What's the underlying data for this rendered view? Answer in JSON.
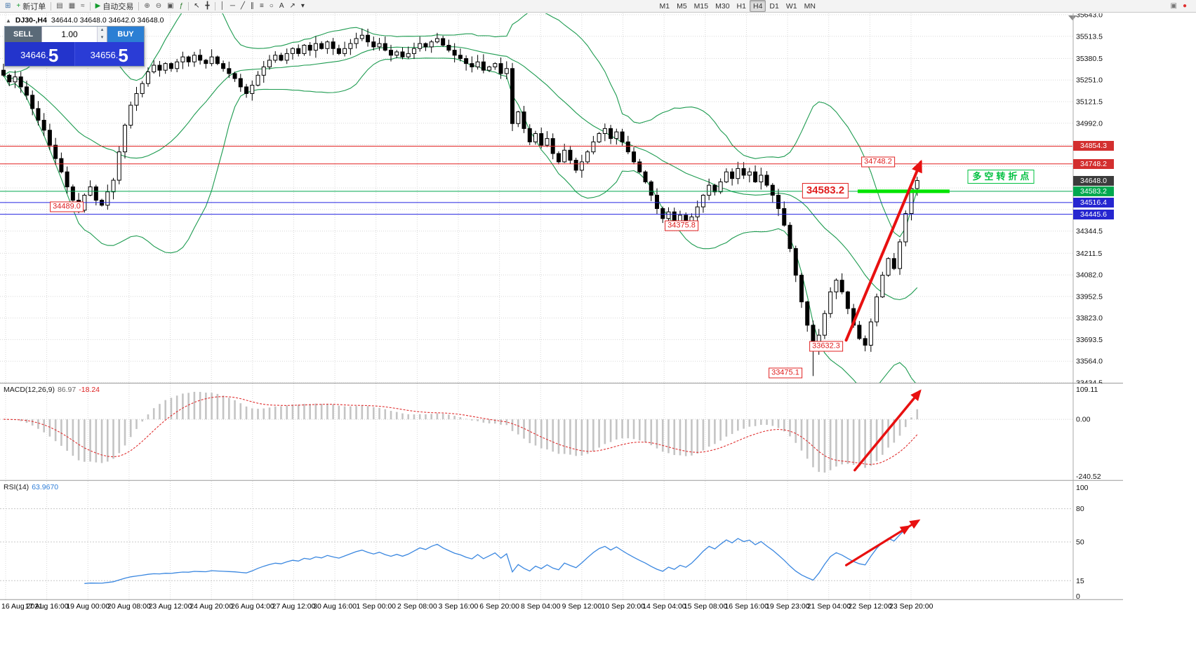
{
  "toolbar": {
    "buttons_left": [
      {
        "name": "new-chart-button",
        "glyph": "⊞",
        "color": "#3a6ea5"
      },
      {
        "name": "new-order-button",
        "glyph": "+",
        "label": "新订单",
        "color": "#149c2e"
      },
      {
        "name": "sep"
      },
      {
        "name": "chart-bars-button",
        "glyph": "▤",
        "color": "#555555"
      },
      {
        "name": "chart-candles-button",
        "glyph": "▦",
        "color": "#555555"
      },
      {
        "name": "chart-line-button",
        "glyph": "≈",
        "color": "#555555"
      },
      {
        "name": "sep"
      },
      {
        "name": "auto-trading-button",
        "glyph": "▶",
        "label": "自动交易",
        "color": "#149c2e"
      },
      {
        "name": "sep"
      },
      {
        "name": "zoom-in-button",
        "glyph": "⊕",
        "color": "#555555"
      },
      {
        "name": "zoom-out-button",
        "glyph": "⊖",
        "color": "#555555"
      },
      {
        "name": "tile-windows-button",
        "glyph": "▣",
        "color": "#555555"
      },
      {
        "name": "indicators-button",
        "glyph": "ƒ",
        "color": "#2a7a2a"
      },
      {
        "name": "sep"
      },
      {
        "name": "cursor-button",
        "glyph": "↖",
        "color": "#333333"
      },
      {
        "name": "crosshair-button",
        "glyph": "╋",
        "color": "#333333"
      },
      {
        "name": "sep"
      },
      {
        "name": "vertical-line-button",
        "glyph": "│",
        "color": "#333333"
      },
      {
        "name": "horizontal-line-button",
        "glyph": "─",
        "color": "#333333"
      },
      {
        "name": "trendline-button",
        "glyph": "╱",
        "color": "#333333"
      },
      {
        "name": "channel-button",
        "glyph": "∥",
        "color": "#333333"
      },
      {
        "name": "fibonacci-button",
        "glyph": "≡",
        "color": "#333333"
      },
      {
        "name": "ellipse-button",
        "glyph": "○",
        "color": "#333333"
      },
      {
        "name": "text-button",
        "glyph": "A",
        "color": "#333333"
      },
      {
        "name": "arrow-tool-button",
        "glyph": "↗",
        "color": "#333333"
      },
      {
        "name": "colors-dropdown",
        "glyph": "▾",
        "color": "#333333"
      }
    ],
    "timeframes": [
      "M1",
      "M5",
      "M15",
      "M30",
      "H1",
      "H4",
      "D1",
      "W1",
      "MN"
    ],
    "active_timeframe": "H4",
    "buttons_right": [
      {
        "name": "docs-button",
        "glyph": "▣",
        "color": "#777777"
      },
      {
        "name": "alerts-button",
        "glyph": "●",
        "color": "#e03131"
      }
    ]
  },
  "symbol_header": {
    "collapse_icon": "▲",
    "symbol": "DJ30-,H4",
    "ohlc": "34644.0 34648.0 34642.0 34648.0"
  },
  "trade_panel": {
    "sell_label": "SELL",
    "buy_label": "BUY",
    "volume": "1.00",
    "vol_up_icon": "▴",
    "vol_down_icon": "▾",
    "sell_price_int": "34646.",
    "sell_price_dec": "5",
    "buy_price_int": "34656.",
    "buy_price_dec": "5"
  },
  "main_chart": {
    "price_max": 35643.0,
    "price_min": 33434.5,
    "axis_labels": [
      35643.0,
      35513.5,
      35380.5,
      35251.0,
      35121.5,
      34992.0,
      34344.5,
      34211.5,
      34082.0,
      33952.5,
      33823.0,
      33693.5,
      33564.0,
      33434.5
    ],
    "grid_extra": [
      34862.5,
      34733.0,
      34603.5,
      34474.0
    ],
    "price_tags": [
      {
        "text": "34854.3",
        "price": 34854.3,
        "bg": "#d32f2f"
      },
      {
        "text": "34748.2",
        "price": 34748.2,
        "bg": "#d32f2f"
      },
      {
        "text": "34648.0",
        "price": 34648.0,
        "bg": "#3c3c3c"
      },
      {
        "text": "34583.2",
        "price": 34583.2,
        "bg": "#00a84f"
      },
      {
        "text": "34516.4",
        "price": 34516.4,
        "bg": "#2626d0"
      },
      {
        "text": "34445.6",
        "price": 34445.6,
        "bg": "#2626d0"
      }
    ],
    "hlines": [
      {
        "price": 34854.3,
        "color": "#e22222",
        "width": 1
      },
      {
        "price": 34748.2,
        "color": "#e22222",
        "width": 1
      },
      {
        "price": 34583.2,
        "color": "#00a84f",
        "width": 1
      },
      {
        "price": 34516.4,
        "color": "#2525e0",
        "width": 1
      },
      {
        "price": 34445.6,
        "color": "#2525e0",
        "width": 1
      }
    ],
    "green_segment": {
      "price": 34583.2,
      "x1f": 0.7997,
      "x2f": 0.8854,
      "color": "#00e400",
      "width": 5
    },
    "bollinger": {
      "period": 20,
      "deviation": 2,
      "color": "#1d9b50"
    },
    "candles_close": [
      35280,
      35240,
      35270,
      35210,
      35160,
      35080,
      35010,
      34950,
      34860,
      34780,
      34700,
      34610,
      34530,
      34470,
      34560,
      34610,
      34530,
      34500,
      34580,
      34650,
      34820,
      34980,
      35100,
      35170,
      35230,
      35300,
      35340,
      35310,
      35350,
      35320,
      35360,
      35390,
      35360,
      35400,
      35370,
      35350,
      35390,
      35350,
      35320,
      35290,
      35260,
      35210,
      35170,
      35220,
      35280,
      35330,
      35370,
      35400,
      35370,
      35410,
      35440,
      35410,
      35460,
      35430,
      35470,
      35440,
      35480,
      35440,
      35410,
      35440,
      35470,
      35500,
      35520,
      35480,
      35450,
      35470,
      35430,
      35400,
      35420,
      35390,
      35410,
      35440,
      35470,
      35450,
      35480,
      35500,
      35460,
      35430,
      35400,
      35380,
      35350,
      35330,
      35360,
      35310,
      35330,
      35350,
      35290,
      35320,
      34990,
      35060,
      34960,
      34880,
      34930,
      34860,
      34900,
      34810,
      34760,
      34830,
      34770,
      34710,
      34760,
      34820,
      34880,
      34930,
      34960,
      34900,
      34940,
      34880,
      34820,
      34760,
      34700,
      34640,
      34560,
      34480,
      34420,
      34460,
      34400,
      34440,
      34390,
      34430,
      34490,
      34560,
      34620,
      34580,
      34640,
      34700,
      34660,
      34720,
      34680,
      34700,
      34640,
      34680,
      34620,
      34560,
      34480,
      34380,
      34240,
      34080,
      33920,
      33780,
      33630,
      33720,
      33850,
      33980,
      34050,
      33980,
      33880,
      33780,
      33700,
      33660,
      33800,
      33950,
      34080,
      34180,
      34120,
      34280,
      34450,
      34600,
      34648
    ],
    "wick_overrides": {
      "13": {
        "low": 34452
      },
      "62": {
        "high": 35560
      },
      "118": {
        "low": 34376
      },
      "140": {
        "low": 33475
      }
    },
    "annotations": [
      {
        "name": "price-label",
        "text": "34489.0",
        "xf": 0.0622,
        "price": 34489.0,
        "style": "red-box"
      },
      {
        "name": "price-label",
        "text": "34375.8",
        "xf": 0.6355,
        "price": 34377.0,
        "style": "red-box"
      },
      {
        "name": "price-label",
        "text": "34748.2",
        "xf": 0.8187,
        "price": 34758.0,
        "style": "red-box"
      },
      {
        "name": "price-label-large",
        "text": "34583.2",
        "xf": 0.7696,
        "price": 34587.0,
        "style": "red-box-large"
      },
      {
        "name": "price-label",
        "text": "33632.3",
        "xf": 0.7703,
        "price": 33655.0,
        "style": "red-box"
      },
      {
        "name": "price-label",
        "text": "33475.1",
        "xf": 0.7323,
        "price": 33493.0,
        "style": "red-box"
      },
      {
        "name": "turning-point-note",
        "text": "多空转折点",
        "xf": 0.9332,
        "price": 34673.0,
        "style": "green-box"
      }
    ],
    "arrow": {
      "x1f": 0.789,
      "p1": 33690,
      "x2f": 0.8585,
      "p2": 34758,
      "color": "#e81010",
      "width": 4
    }
  },
  "macd": {
    "label": "MACD(12,26,9)",
    "value_main": "86.97",
    "value_signal": "-18.24",
    "scale_top": "109.11",
    "scale_zero": "0.00",
    "scale_bottom": "-240.52",
    "histogram_color": "#c4c4c4",
    "signal_color": "#e03131",
    "arrow": {
      "x1f": 0.797,
      "y1f": 0.92,
      "x2f": 0.8575,
      "y2f": 0.05,
      "color": "#e81010",
      "width": 3.5
    }
  },
  "rsi": {
    "label": "RSI(14)",
    "value": "63.9670",
    "line_color": "#3a87e0",
    "scale_top": "100",
    "scale_bottom": "0",
    "levels": [
      {
        "value": 80,
        "text": "80"
      },
      {
        "value": 50,
        "text": "50"
      },
      {
        "value": 15,
        "text": "15"
      }
    ],
    "arrow": {
      "x1f": 0.789,
      "v1": 29,
      "x2f": 0.856,
      "v2": 69,
      "color": "#e81010",
      "width": 3
    }
  },
  "time_axis": {
    "labels": [
      "16 Aug 2021",
      "17 Aug 16:00",
      "19 Aug 00:00",
      "20 Aug 08:00",
      "23 Aug 12:00",
      "24 Aug 20:00",
      "26 Aug 04:00",
      "27 Aug 12:00",
      "30 Aug 16:00",
      "1 Sep 00:00",
      "2 Sep 08:00",
      "3 Sep 16:00",
      "6 Sep 20:00",
      "8 Sep 04:00",
      "9 Sep 12:00",
      "10 Sep 20:00",
      "14 Sep 04:00",
      "15 Sep 08:00",
      "16 Sep 16:00",
      "19 Sep 23:00",
      "21 Sep 04:00",
      "22 Sep 12:00",
      "23 Sep 20:00"
    ]
  }
}
